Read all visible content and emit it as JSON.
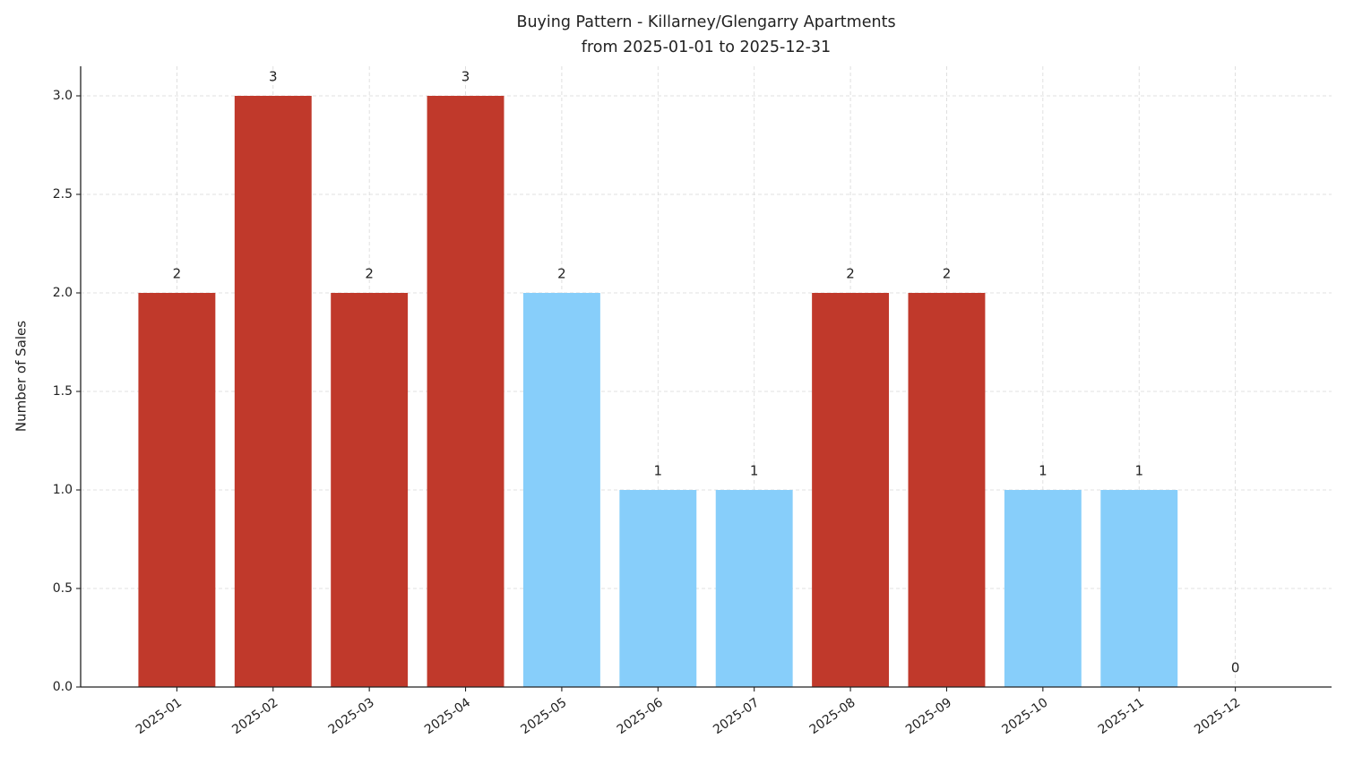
{
  "chart_data": {
    "type": "bar",
    "title": "Buying Pattern - Killarney/Glengarry Apartments",
    "subtitle": "from 2025-01-01 to 2025-12-31",
    "y_label": "Number of Sales",
    "categories": [
      "2025-01",
      "2025-02",
      "2025-03",
      "2025-04",
      "2025-05",
      "2025-06",
      "2025-07",
      "2025-08",
      "2025-09",
      "2025-10",
      "2025-11",
      "2025-12"
    ],
    "values": [
      2,
      3,
      2,
      3,
      2,
      1,
      1,
      2,
      2,
      1,
      1,
      0
    ],
    "colors": [
      "#c0392b",
      "#c0392b",
      "#c0392b",
      "#c0392b",
      "#87cefa",
      "#87cefa",
      "#87cefa",
      "#c0392b",
      "#c0392b",
      "#87cefa",
      "#87cefa",
      "#87cefa"
    ],
    "ylim": [
      0,
      3.15
    ],
    "yticks": [
      {
        "value": 0,
        "label": "0.0"
      },
      0.5,
      {
        "value": 1,
        "label": "1.0"
      },
      1.5,
      {
        "value": 2,
        "label": "2.0"
      },
      2.5,
      {
        "value": 3,
        "label": "3.0"
      }
    ],
    "grid": true,
    "data_labels": true
  }
}
